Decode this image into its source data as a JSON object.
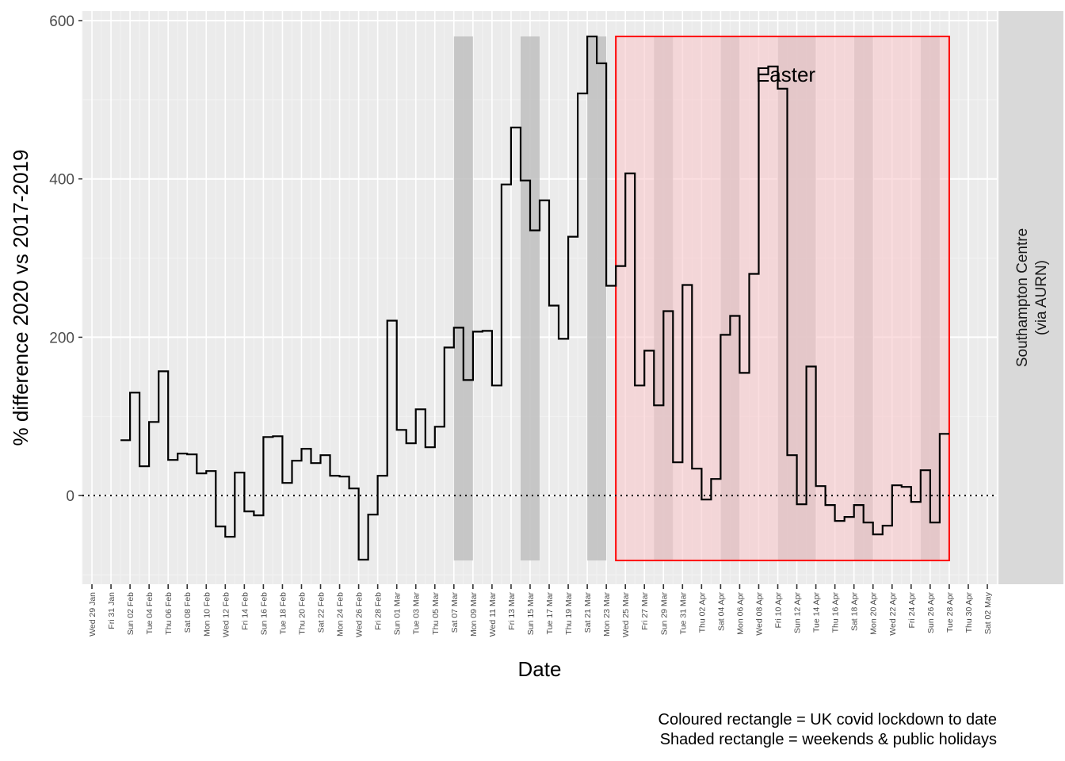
{
  "chart_data": {
    "type": "line",
    "step": true,
    "xlabel": "Date",
    "ylabel": "% difference 2020 vs 2017-2019",
    "facet_label": [
      "Southampton Centre",
      "(via AURN)"
    ],
    "ylim": [
      -112,
      612
    ],
    "yticks": [
      0,
      200,
      400,
      600
    ],
    "x_range": [
      "2020-01-28",
      "2020-05-03"
    ],
    "xtick_labels": [
      "Wed 29 Jan",
      "Fri 31 Jan",
      "Sun 02 Feb",
      "Tue 04 Feb",
      "Thu 06 Feb",
      "Sat 08 Feb",
      "Mon 10 Feb",
      "Wed 12 Feb",
      "Fri 14 Feb",
      "Sun 16 Feb",
      "Tue 18 Feb",
      "Thu 20 Feb",
      "Sat 22 Feb",
      "Mon 24 Feb",
      "Wed 26 Feb",
      "Fri 28 Feb",
      "Sun 01 Mar",
      "Tue 03 Mar",
      "Thu 05 Mar",
      "Sat 07 Mar",
      "Mon 09 Mar",
      "Wed 11 Mar",
      "Fri 13 Mar",
      "Sun 15 Mar",
      "Tue 17 Mar",
      "Thu 19 Mar",
      "Sat 21 Mar",
      "Mon 23 Mar",
      "Wed 25 Mar",
      "Fri 27 Mar",
      "Sun 29 Mar",
      "Tue 31 Mar",
      "Thu 02 Apr",
      "Sat 04 Apr",
      "Mon 06 Apr",
      "Wed 08 Apr",
      "Fri 10 Apr",
      "Sun 12 Apr",
      "Tue 14 Apr",
      "Thu 16 Apr",
      "Sat 18 Apr",
      "Mon 20 Apr",
      "Wed 22 Apr",
      "Fri 24 Apr",
      "Sun 26 Apr",
      "Tue 28 Apr",
      "Thu 30 Apr",
      "Sat 02 May"
    ],
    "xtick_dates": [
      "2020-01-29",
      "2020-01-31",
      "2020-02-02",
      "2020-02-04",
      "2020-02-06",
      "2020-02-08",
      "2020-02-10",
      "2020-02-12",
      "2020-02-14",
      "2020-02-16",
      "2020-02-18",
      "2020-02-20",
      "2020-02-22",
      "2020-02-24",
      "2020-02-26",
      "2020-02-28",
      "2020-03-01",
      "2020-03-03",
      "2020-03-05",
      "2020-03-07",
      "2020-03-09",
      "2020-03-11",
      "2020-03-13",
      "2020-03-15",
      "2020-03-17",
      "2020-03-19",
      "2020-03-21",
      "2020-03-23",
      "2020-03-25",
      "2020-03-27",
      "2020-03-29",
      "2020-03-31",
      "2020-04-02",
      "2020-04-04",
      "2020-04-06",
      "2020-04-08",
      "2020-04-10",
      "2020-04-12",
      "2020-04-14",
      "2020-04-16",
      "2020-04-18",
      "2020-04-20",
      "2020-04-22",
      "2020-04-24",
      "2020-04-26",
      "2020-04-28",
      "2020-04-30",
      "2020-05-02"
    ],
    "series": [
      {
        "start_date": "2020-02-01",
        "values": [
          70,
          130,
          37,
          93,
          157,
          45,
          53,
          52,
          28,
          31,
          -39,
          -52,
          29,
          -20,
          -25,
          74,
          75,
          16,
          44,
          59,
          41,
          51,
          25,
          24,
          9,
          -81,
          -24,
          25,
          221,
          83,
          66,
          109,
          61,
          87,
          187,
          212,
          146,
          207,
          208,
          139,
          393,
          465,
          398,
          335,
          373,
          240,
          198,
          327,
          508,
          580,
          546,
          265,
          290,
          407,
          139,
          183,
          114,
          233,
          42,
          266,
          34,
          -5,
          21,
          203,
          227,
          155,
          280,
          532,
          542,
          514,
          51,
          -11,
          163,
          12,
          -12,
          -32,
          -27,
          -12,
          -34,
          -49,
          -38,
          13,
          11,
          -8,
          32,
          -34,
          78
        ],
        "color": "#000000"
      }
    ],
    "zero_line": 0,
    "shaded_periods": [
      {
        "start": "2020-03-07",
        "end": "2020-03-09",
        "label": "Sat 07 Mar"
      },
      {
        "start": "2020-03-14",
        "end": "2020-03-16",
        "label": "Sat 14 Mar"
      },
      {
        "start": "2020-03-21",
        "end": "2020-03-23",
        "label": "Sat 21 Mar"
      },
      {
        "start": "2020-03-28",
        "end": "2020-03-30",
        "label": "Sat 28 Mar"
      },
      {
        "start": "2020-04-04",
        "end": "2020-04-06",
        "label": "Sat 04 Apr"
      },
      {
        "start": "2020-04-10",
        "end": "2020-04-14",
        "label": "Easter"
      },
      {
        "start": "2020-04-18",
        "end": "2020-04-20",
        "label": "Sat 18 Apr"
      },
      {
        "start": "2020-04-25",
        "end": "2020-04-27",
        "label": "Sat 25 Apr"
      }
    ],
    "lockdown": {
      "start": "2020-03-24",
      "end": "2020-04-28"
    },
    "annotations": [
      {
        "text": "Easter",
        "x": "2020-04-09",
        "y": 520
      }
    ],
    "colors": {
      "panel": "#ebebeb",
      "grid_major": "#ffffff",
      "grid_minor": "#f2f2f2",
      "shade": "#bfbfbf",
      "lockdown_fill": "#f8c8cc",
      "lockdown_border": "#ff0000",
      "strip": "#d9d9d9",
      "line": "#000000"
    },
    "grid": true
  },
  "captions": {
    "line1": "Coloured rectangle = UK covid lockdown to date",
    "line2": "Shaded rectangle = weekends & public holidays"
  }
}
